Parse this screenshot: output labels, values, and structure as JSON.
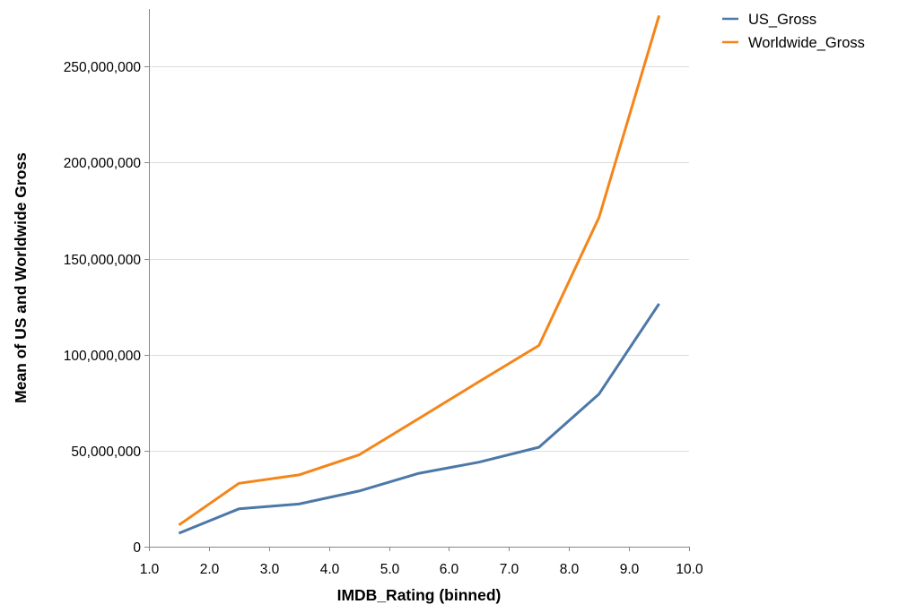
{
  "chart_data": {
    "type": "line",
    "xlabel": "IMDB_Rating (binned)",
    "ylabel": "Mean of US and Worldwide Gross",
    "xlim": [
      1.0,
      10.0
    ],
    "ylim": [
      0,
      280000000
    ],
    "x_ticks": [
      "1.0",
      "2.0",
      "3.0",
      "4.0",
      "5.0",
      "6.0",
      "7.0",
      "8.0",
      "9.0",
      "10.0"
    ],
    "y_ticks": [
      "0",
      "50,000,000",
      "100,000,000",
      "150,000,000",
      "200,000,000",
      "250,000,000"
    ],
    "grid": "horizontal",
    "legend_position": "top-right",
    "x": [
      1.5,
      2.5,
      3.5,
      4.5,
      5.5,
      6.5,
      7.5,
      8.5,
      9.5
    ],
    "series": [
      {
        "name": "US_Gross",
        "color": "#4c78a8",
        "values": [
          7000000,
          19700000,
          22200000,
          29000000,
          38200000,
          44000000,
          51800000,
          79500000,
          126500000
        ]
      },
      {
        "name": "Worldwide_Gross",
        "color": "#f58518",
        "values": [
          11300000,
          33000000,
          37400000,
          47800000,
          66800000,
          85900000,
          104800000,
          171500000,
          276600000
        ]
      }
    ]
  }
}
